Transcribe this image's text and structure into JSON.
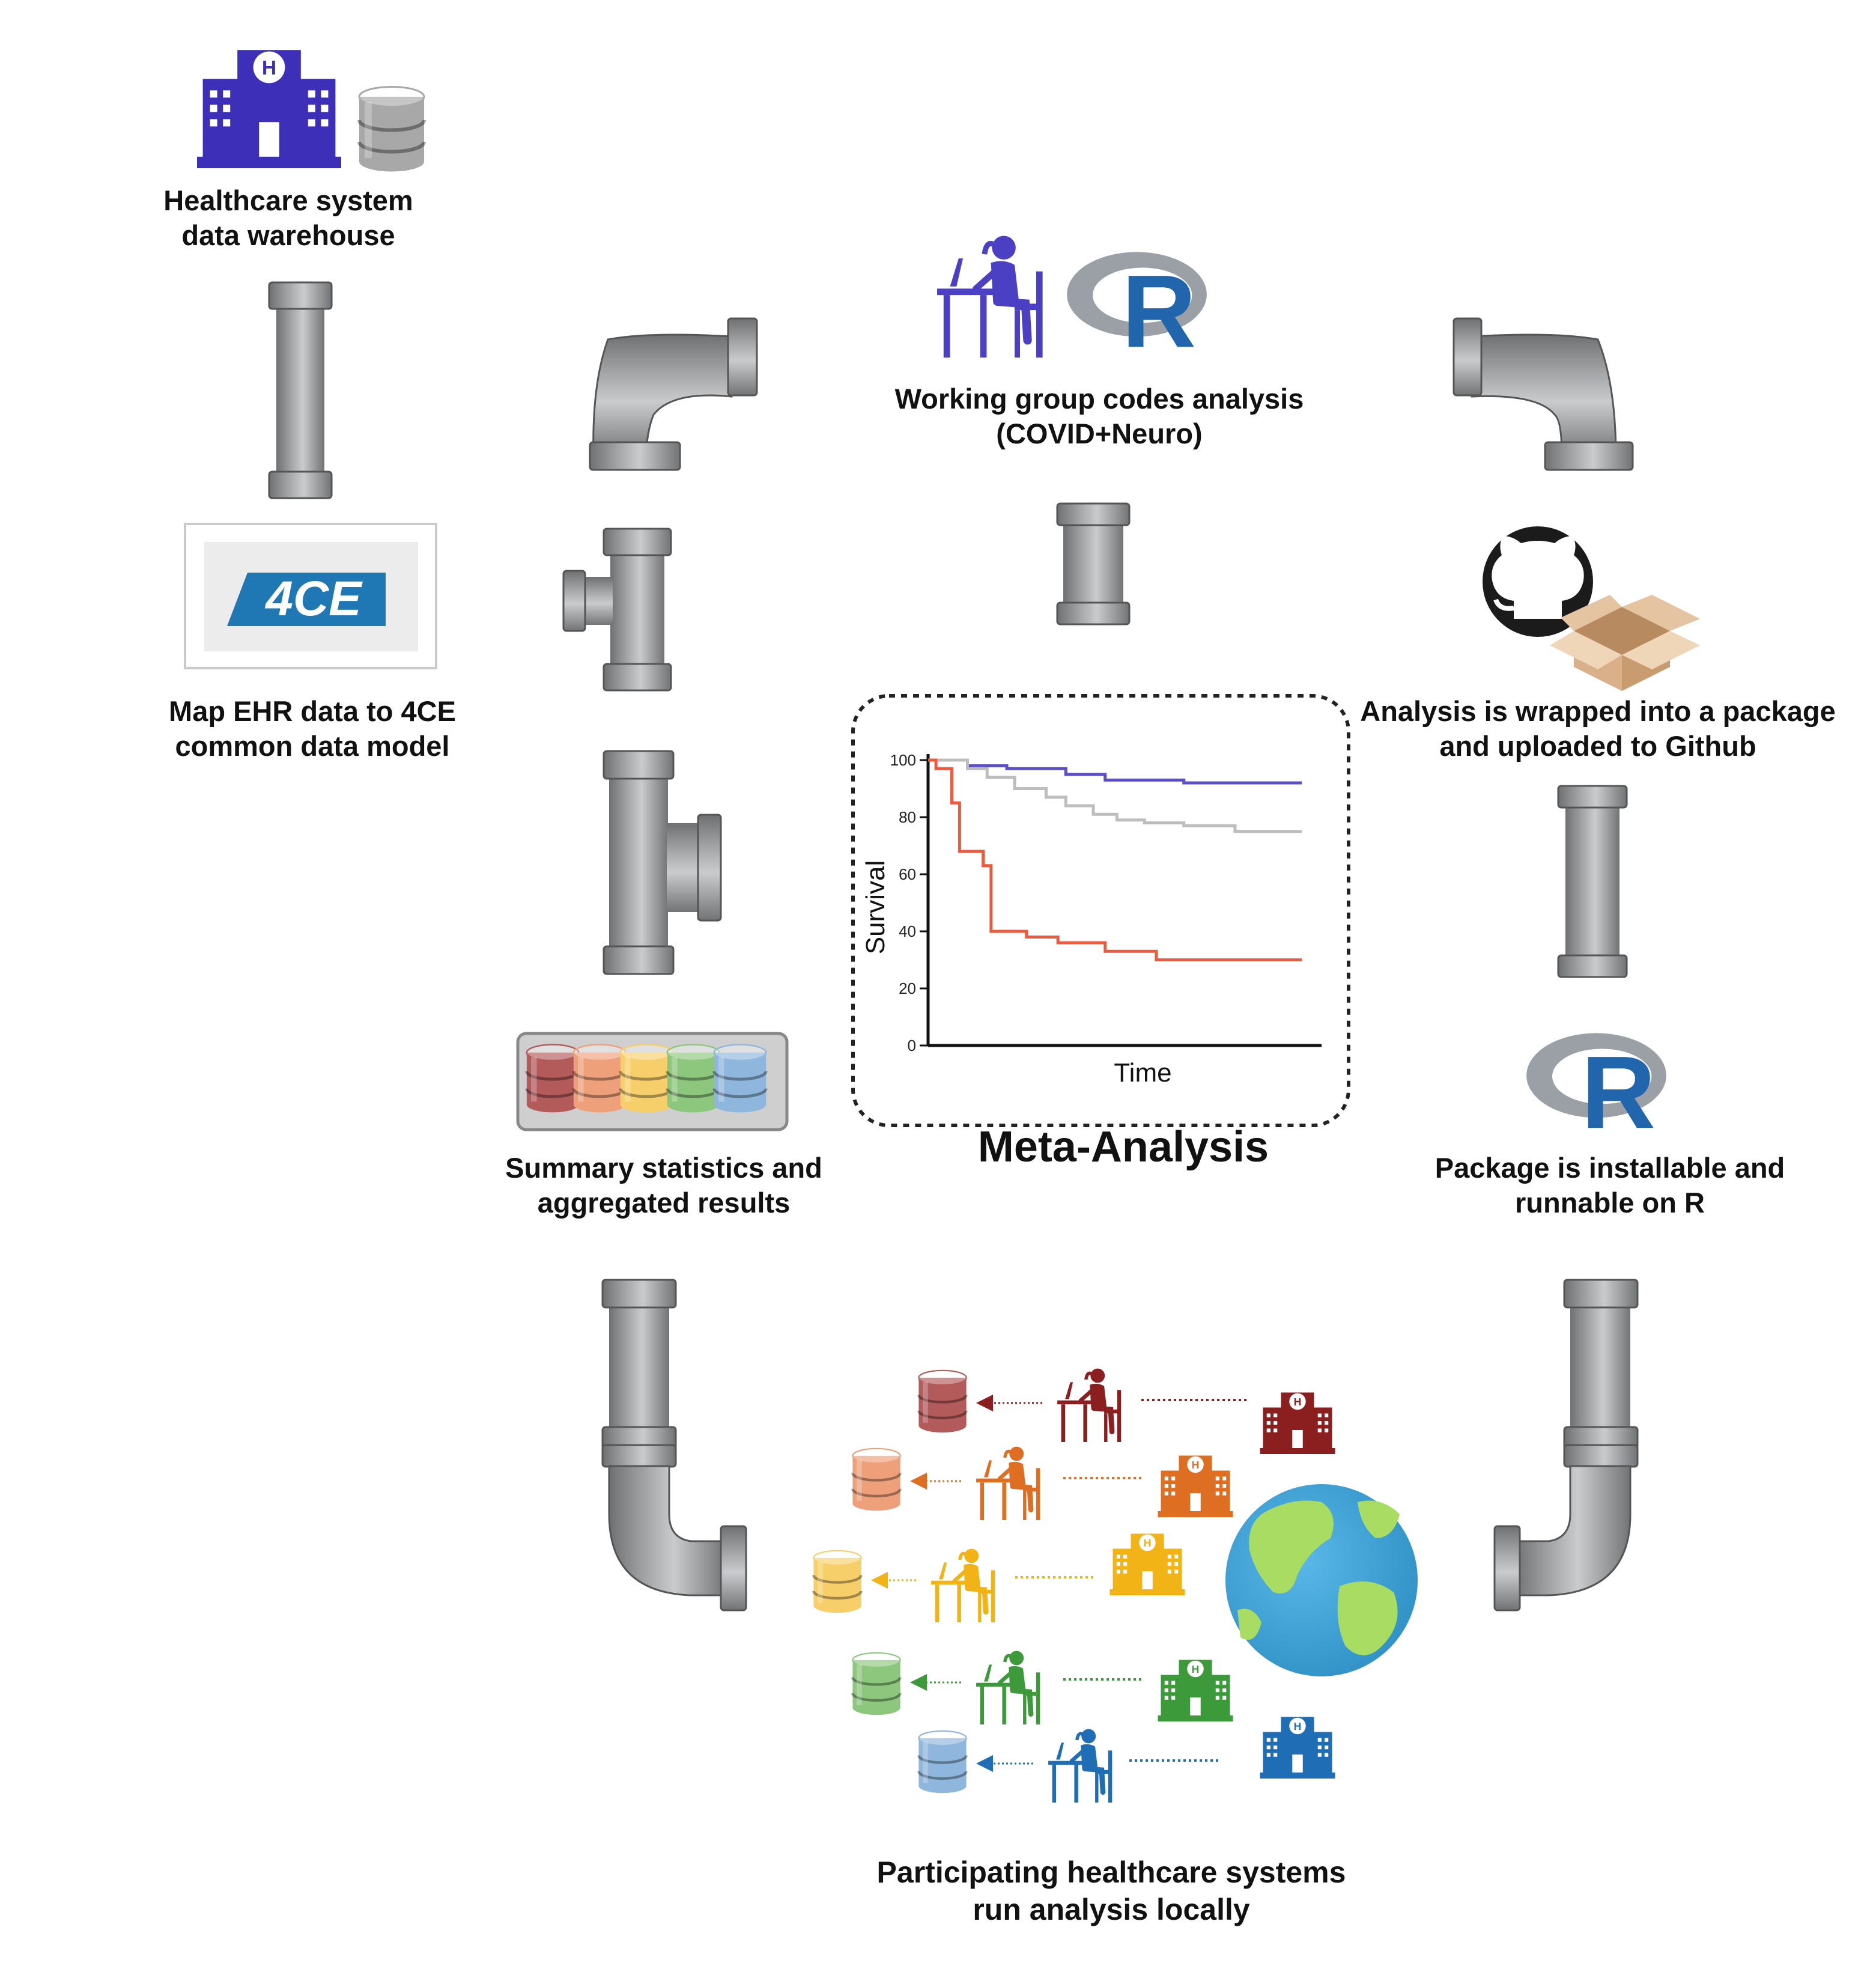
{
  "labels": {
    "warehouse": [
      "Healthcare system",
      "data warehouse"
    ],
    "map_ehr": [
      "Map EHR data to 4CE",
      "common data model"
    ],
    "working_group": [
      "Working group codes analysis",
      "(COVID+Neuro)"
    ],
    "package_github": [
      "Analysis is wrapped into a package",
      "and uploaded to Github"
    ],
    "summary": [
      "Summary statistics and",
      "aggregated results"
    ],
    "installable": [
      "Package is installable and",
      "runnable on R"
    ],
    "participating": [
      "Participating healthcare systems",
      "run analysis locally"
    ]
  },
  "logo_4ce": "4CE",
  "hospital_letter": "H",
  "r_letter": "R",
  "meta_title": "Meta-Analysis",
  "chart_data": {
    "type": "line",
    "xlabel": "Time",
    "ylabel": "Survival",
    "ylim": [
      0,
      100
    ],
    "yticks": [
      0,
      20,
      40,
      60,
      80,
      100
    ],
    "step": true,
    "series": [
      {
        "color": "#5b4fc4",
        "x": [
          0,
          10,
          20,
          35,
          45,
          65,
          95
        ],
        "y": [
          100,
          98,
          97,
          95,
          93,
          92,
          92
        ]
      },
      {
        "color": "#bdbdbd",
        "x": [
          0,
          10,
          15,
          22,
          30,
          35,
          42,
          48,
          55,
          65,
          78,
          95
        ],
        "y": [
          100,
          97,
          94,
          90,
          87,
          84,
          81,
          79,
          78,
          77,
          75,
          75
        ]
      },
      {
        "color": "#ef5a3c",
        "x": [
          0,
          2,
          6,
          8,
          14,
          16,
          25,
          33,
          45,
          58,
          95
        ],
        "y": [
          100,
          97,
          85,
          68,
          63,
          40,
          38,
          36,
          33,
          30,
          30
        ]
      }
    ]
  },
  "colors": {
    "purple": "#3d2fb8",
    "pipe": "#8f9193",
    "sites": [
      "#8b1f1f",
      "#de6f22",
      "#f2b316",
      "#3d9a3a",
      "#1f6db4"
    ],
    "db_sites": [
      "#b35a5a",
      "#eea07a",
      "#f7cf6a",
      "#8cc77d",
      "#8fb6dc"
    ]
  },
  "icons": [
    "hospital-icon",
    "database-icon",
    "r-logo-icon",
    "github-icon",
    "box-icon",
    "globe-icon",
    "researcher-icon",
    "pipe-icon"
  ]
}
